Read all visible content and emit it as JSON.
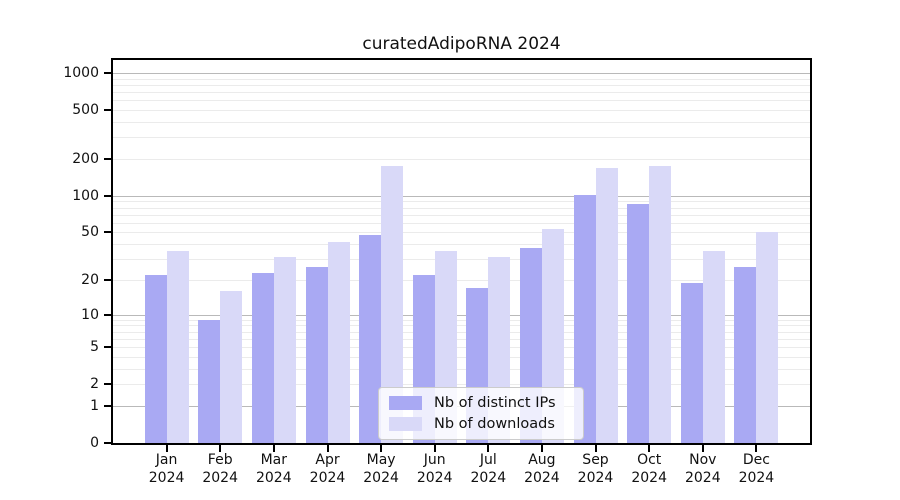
{
  "chart_data": {
    "type": "bar",
    "title": "curatedAdipoRNA 2024",
    "categories": [
      "Jan",
      "Feb",
      "Mar",
      "Apr",
      "May",
      "Jun",
      "Jul",
      "Aug",
      "Sep",
      "Oct",
      "Nov",
      "Dec"
    ],
    "category_year": "2024",
    "series": [
      {
        "name": "Nb of distinct IPs",
        "color": "#a9a9f3",
        "values": [
          22,
          9,
          23,
          26,
          48,
          22,
          17,
          37,
          102,
          85,
          19,
          26
        ]
      },
      {
        "name": "Nb of downloads",
        "color": "#d9d9f8",
        "values": [
          35,
          16,
          31,
          42,
          176,
          35,
          31,
          53,
          168,
          176,
          35,
          50
        ]
      }
    ],
    "y_scale": "log1p",
    "y_ticks": [
      0,
      1,
      2,
      5,
      10,
      20,
      50,
      100,
      200,
      500,
      1000
    ],
    "y_max": 1000,
    "grid": true,
    "legend_position": "lower-center"
  },
  "colors": {
    "major_grid": "#b9b9b9",
    "minor_grid": "#ebebeb",
    "spine": "#000000",
    "background": "#ffffff"
  }
}
